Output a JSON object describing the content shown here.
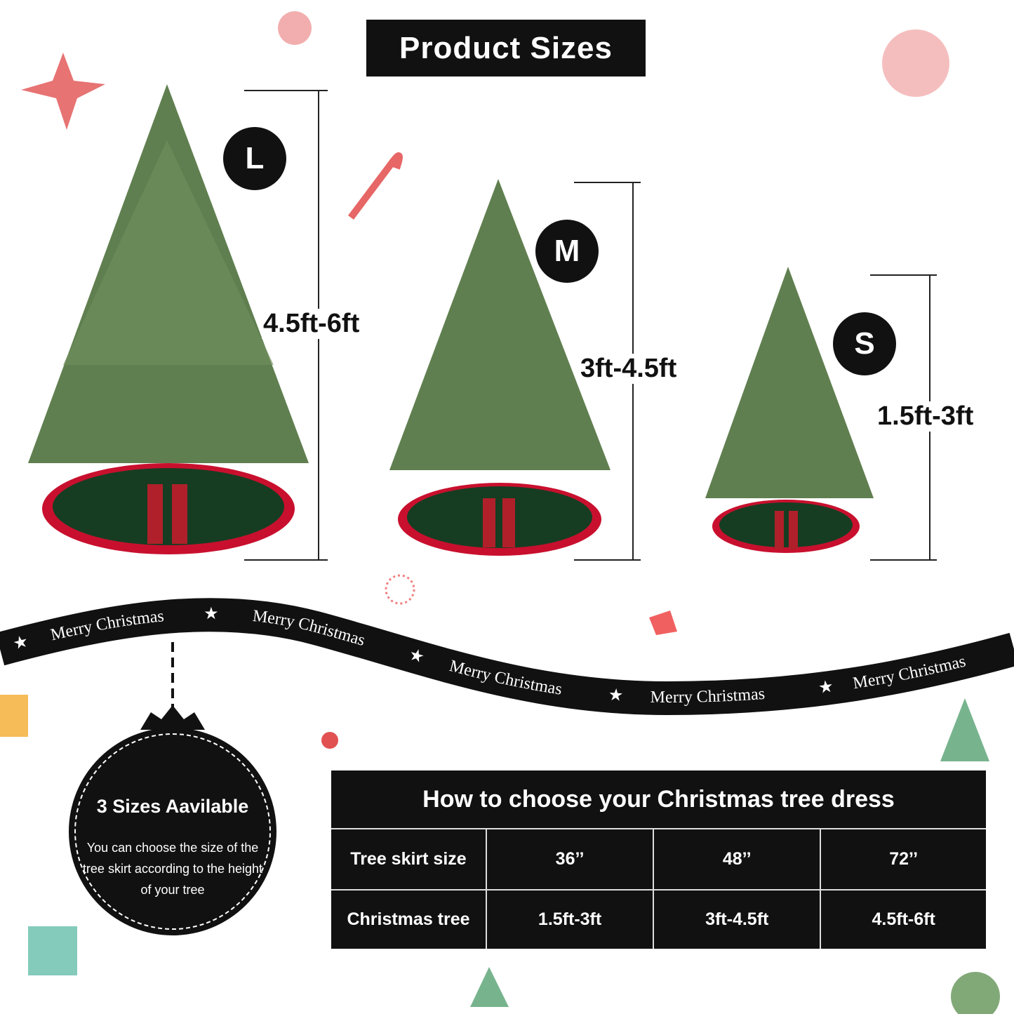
{
  "title": "Product Sizes",
  "sizes": [
    {
      "badge": "L",
      "range": "4.5ft-6ft"
    },
    {
      "badge": "M",
      "range": "3ft-4.5ft"
    },
    {
      "badge": "S",
      "range": "1.5ft-3ft"
    }
  ],
  "ribbon": {
    "text": "Merry Christmas",
    "star": "★"
  },
  "ornament": {
    "title": "3 Sizes Aavilable",
    "text": "You can choose the size of the tree skirt according to the height of your tree"
  },
  "table": {
    "title": "How to choose your Christmas tree dress",
    "rows": [
      {
        "label": "Tree skirt size",
        "values": [
          "36’’",
          "48’’",
          "72’’"
        ]
      },
      {
        "label": "Christmas tree",
        "values": [
          "1.5ft-3ft",
          "3ft-4.5ft",
          "4.5ft-6ft"
        ]
      }
    ]
  },
  "colors": {
    "black": "#111111",
    "tree_green": "#5f7f4f",
    "skirt_red": "#c8102e",
    "skirt_green": "#163d22"
  }
}
